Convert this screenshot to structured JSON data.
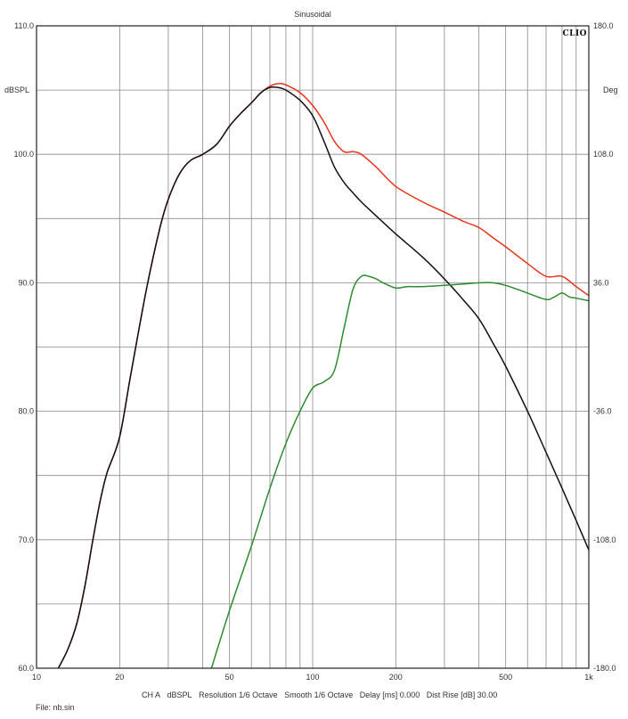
{
  "chart_data": {
    "type": "line",
    "title": "Sinusoidal",
    "brand": "CLIO",
    "x_scale": "log",
    "xlim": [
      10,
      1000
    ],
    "x_tick_labels": [
      {
        "value": 10,
        "label": "10"
      },
      {
        "value": 20,
        "label": "20"
      },
      {
        "value": 50,
        "label": "50"
      },
      {
        "value": 100,
        "label": "100"
      },
      {
        "value": 200,
        "label": "200"
      },
      {
        "value": 500,
        "label": "500"
      },
      {
        "value": 1000,
        "label": "1k"
      }
    ],
    "y_left": {
      "label": "dBSPL",
      "lim": [
        60,
        110
      ],
      "ticks": [
        "60.0",
        "70.0",
        "80.0",
        "90.0",
        "100.0",
        "110.0"
      ]
    },
    "y_right": {
      "label": "Deg",
      "lim": [
        -180,
        180
      ],
      "ticks": [
        "-180.0",
        "-108.0",
        "-36.0",
        "36.0",
        "108.0",
        "180.0"
      ]
    },
    "grid": true,
    "series": [
      {
        "color": "#e8341c",
        "x": [
          12,
          13,
          14,
          15,
          16,
          17,
          18,
          20,
          22,
          25,
          28,
          30,
          33,
          36,
          40,
          45,
          50,
          55,
          60,
          65,
          70,
          75,
          80,
          90,
          100,
          110,
          120,
          130,
          140,
          150,
          170,
          200,
          250,
          300,
          350,
          400,
          450,
          500,
          600,
          700,
          800,
          900,
          1000
        ],
        "y": [
          60.0,
          61.5,
          63.5,
          66.5,
          70.0,
          73.0,
          75.2,
          78.0,
          83.0,
          89.5,
          94.3,
          96.5,
          98.5,
          99.5,
          100.0,
          100.8,
          102.2,
          103.2,
          104.0,
          104.8,
          105.3,
          105.5,
          105.4,
          104.8,
          103.8,
          102.5,
          101.0,
          100.2,
          100.2,
          100.0,
          99.0,
          97.5,
          96.3,
          95.5,
          94.8,
          94.3,
          93.5,
          92.8,
          91.5,
          90.5,
          90.5,
          89.7,
          89.0
        ]
      },
      {
        "color": "#111111",
        "x": [
          12,
          13,
          14,
          15,
          16,
          17,
          18,
          20,
          22,
          25,
          28,
          30,
          33,
          36,
          40,
          45,
          50,
          55,
          60,
          65,
          70,
          75,
          80,
          90,
          100,
          110,
          120,
          130,
          140,
          150,
          170,
          200,
          250,
          300,
          350,
          400,
          450,
          500,
          600,
          700,
          800,
          900,
          1000
        ],
        "y": [
          60.0,
          61.5,
          63.5,
          66.5,
          70.0,
          73.0,
          75.2,
          78.0,
          83.0,
          89.5,
          94.3,
          96.5,
          98.5,
          99.5,
          100.0,
          100.8,
          102.2,
          103.2,
          104.0,
          104.8,
          105.2,
          105.2,
          105.0,
          104.2,
          103.0,
          101.0,
          99.0,
          97.8,
          97.0,
          96.3,
          95.2,
          93.8,
          92.0,
          90.3,
          88.7,
          87.2,
          85.3,
          83.5,
          80.0,
          76.8,
          74.0,
          71.5,
          69.2
        ]
      },
      {
        "color": "#2e8b2e",
        "x": [
          43,
          50,
          60,
          70,
          80,
          90,
          100,
          110,
          120,
          130,
          140,
          150,
          160,
          170,
          180,
          200,
          220,
          250,
          300,
          350,
          400,
          450,
          500,
          550,
          600,
          700,
          750,
          800,
          850,
          900,
          1000
        ],
        "y": [
          60.0,
          64.5,
          69.5,
          74.0,
          77.5,
          80.0,
          81.8,
          82.3,
          83.2,
          86.5,
          89.5,
          90.5,
          90.5,
          90.3,
          90.0,
          89.6,
          89.7,
          89.7,
          89.8,
          89.9,
          90.0,
          90.0,
          89.8,
          89.5,
          89.2,
          88.7,
          88.9,
          89.2,
          88.9,
          88.8,
          88.6
        ]
      }
    ]
  },
  "footer": {
    "channel": "CH A",
    "unit": "dBSPL",
    "resolution": "Resolution 1/6 Octave",
    "smooth": "Smooth 1/6 Octave",
    "delay": "Delay [ms] 0.000",
    "dist_rise": "Dist Rise [dB] 30.00",
    "file": "File: nb.sin"
  }
}
